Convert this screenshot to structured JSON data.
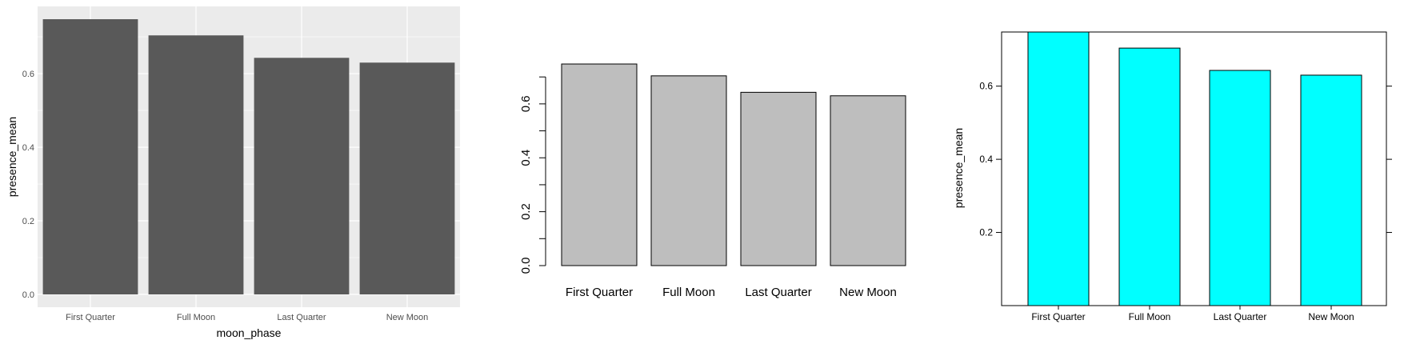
{
  "chart_data": [
    {
      "type": "bar",
      "style": "ggplot2",
      "categories": [
        "First Quarter",
        "Full Moon",
        "Last Quarter",
        "New Moon"
      ],
      "values": [
        0.748,
        0.704,
        0.643,
        0.63
      ],
      "xlabel": "moon_phase",
      "ylabel": "presence_mean",
      "ylim": [
        0,
        0.748
      ],
      "yticks": [
        "0.0",
        "0.2",
        "0.4",
        "0.6"
      ],
      "grid": true,
      "colors": {
        "bar": "#595959",
        "panel": "#ebebeb",
        "grid": "#ffffff"
      }
    },
    {
      "type": "bar",
      "style": "base-r",
      "categories": [
        "First Quarter",
        "Full Moon",
        "Last Quarter",
        "New Moon"
      ],
      "values": [
        0.748,
        0.704,
        0.643,
        0.63
      ],
      "xlabel": "",
      "ylabel": "",
      "ylim": [
        0,
        0.748
      ],
      "yticks": [
        "0.0",
        "0.2",
        "0.4",
        "0.6"
      ],
      "grid": false,
      "colors": {
        "bar": "#bebebe",
        "border": "#000000"
      }
    },
    {
      "type": "bar",
      "style": "lattice",
      "categories": [
        "First Quarter",
        "Full Moon",
        "Last Quarter",
        "New Moon"
      ],
      "values": [
        0.748,
        0.704,
        0.643,
        0.63
      ],
      "xlabel": "",
      "ylabel": "presence_mean",
      "ylim": [
        0,
        0.748
      ],
      "yticks": [
        "0.2",
        "0.4",
        "0.6"
      ],
      "grid": false,
      "colors": {
        "bar": "#00ffff",
        "border": "#000000"
      }
    }
  ]
}
